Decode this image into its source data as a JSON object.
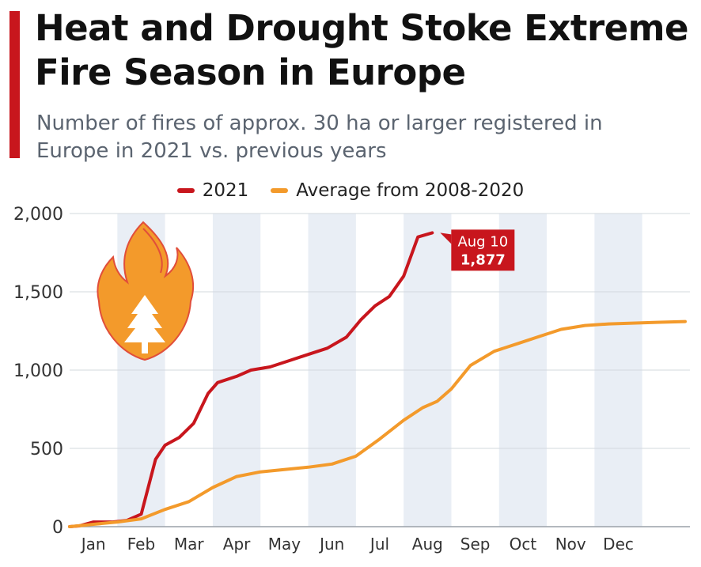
{
  "header": {
    "title": "Heat and Drought Stoke Extreme Fire Season in Europe",
    "subtitle": "Number of fires of approx. 30 ha or larger registered in Europe in 2021 vs. previous years"
  },
  "colors": {
    "accent": "#c8161d",
    "series_2021": "#c8161d",
    "series_average": "#f39a2b",
    "band": "#e9eef5",
    "grid": "#d3d8de"
  },
  "icons": [
    "fire-tree-icon"
  ],
  "chart_data": {
    "type": "line",
    "title": "Heat and Drought Stoke Extreme Fire Season in Europe",
    "subtitle": "Number of fires of approx. 30 ha or larger registered in Europe in 2021 vs. previous years",
    "xlabel": "",
    "ylabel": "",
    "x_unit": "month",
    "months": [
      "Jan",
      "Feb",
      "Mar",
      "Apr",
      "May",
      "Jun",
      "Jul",
      "Aug",
      "Sep",
      "Oct",
      "Nov",
      "Dec"
    ],
    "ylim": [
      0,
      2000
    ],
    "yticks": [
      0,
      500,
      1000,
      1500,
      2000
    ],
    "ytick_labels": [
      "0",
      "500",
      "1,000",
      "1,500",
      "2,000"
    ],
    "grid": true,
    "legend": "top-center",
    "series": [
      {
        "name": "2021",
        "color": "#c8161d",
        "points": [
          [
            1.0,
            0
          ],
          [
            1.2,
            5
          ],
          [
            1.5,
            30
          ],
          [
            1.9,
            30
          ],
          [
            2.2,
            40
          ],
          [
            2.5,
            80
          ],
          [
            2.8,
            430
          ],
          [
            3.0,
            520
          ],
          [
            3.3,
            570
          ],
          [
            3.6,
            660
          ],
          [
            3.9,
            850
          ],
          [
            4.1,
            920
          ],
          [
            4.5,
            960
          ],
          [
            4.8,
            1000
          ],
          [
            5.2,
            1020
          ],
          [
            5.6,
            1060
          ],
          [
            6.0,
            1100
          ],
          [
            6.4,
            1140
          ],
          [
            6.8,
            1210
          ],
          [
            7.1,
            1320
          ],
          [
            7.4,
            1410
          ],
          [
            7.7,
            1470
          ],
          [
            8.0,
            1600
          ],
          [
            8.3,
            1850
          ],
          [
            8.6,
            1877
          ]
        ]
      },
      {
        "name": "Average from 2008-2020",
        "color": "#f39a2b",
        "points": [
          [
            1.0,
            0
          ],
          [
            1.5,
            15
          ],
          [
            2.0,
            30
          ],
          [
            2.5,
            50
          ],
          [
            3.0,
            110
          ],
          [
            3.5,
            160
          ],
          [
            4.0,
            250
          ],
          [
            4.5,
            320
          ],
          [
            5.0,
            350
          ],
          [
            5.5,
            365
          ],
          [
            6.0,
            380
          ],
          [
            6.5,
            400
          ],
          [
            7.0,
            450
          ],
          [
            7.5,
            560
          ],
          [
            8.0,
            680
          ],
          [
            8.4,
            760
          ],
          [
            8.7,
            800
          ],
          [
            9.0,
            880
          ],
          [
            9.4,
            1030
          ],
          [
            9.9,
            1120
          ],
          [
            10.4,
            1170
          ],
          [
            10.9,
            1220
          ],
          [
            11.3,
            1260
          ],
          [
            11.8,
            1285
          ],
          [
            12.3,
            1295
          ],
          [
            12.8,
            1300
          ],
          [
            13.3,
            1305
          ],
          [
            13.9,
            1310
          ]
        ]
      }
    ],
    "annotation": {
      "label": "Aug 10",
      "value": "1,877"
    }
  }
}
